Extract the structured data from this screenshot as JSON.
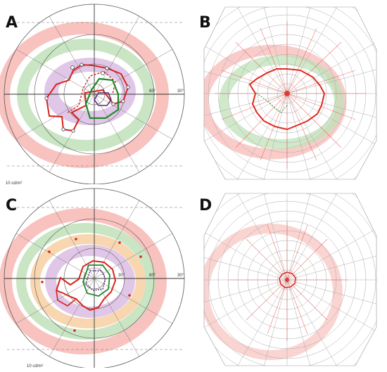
{
  "panels": [
    {
      "id": "A",
      "label": "A",
      "type": "goldmann",
      "scale_note": "10 cd/m²",
      "degree_labels": [
        "60°",
        "30°"
      ],
      "colors": {
        "outer": "#f7b7b3",
        "mid": "#bfe1b8",
        "inner": "#dcbde3",
        "orange": "#f6cfa2"
      }
    },
    {
      "id": "B",
      "label": "B",
      "type": "perimetry-grid"
    },
    {
      "id": "C",
      "label": "C",
      "type": "goldmann",
      "scale_note": "10 cd/m²",
      "degree_labels": [
        "30°",
        "60°",
        "30°"
      ]
    },
    {
      "id": "D",
      "label": "D",
      "type": "perimetry-grid"
    }
  ]
}
